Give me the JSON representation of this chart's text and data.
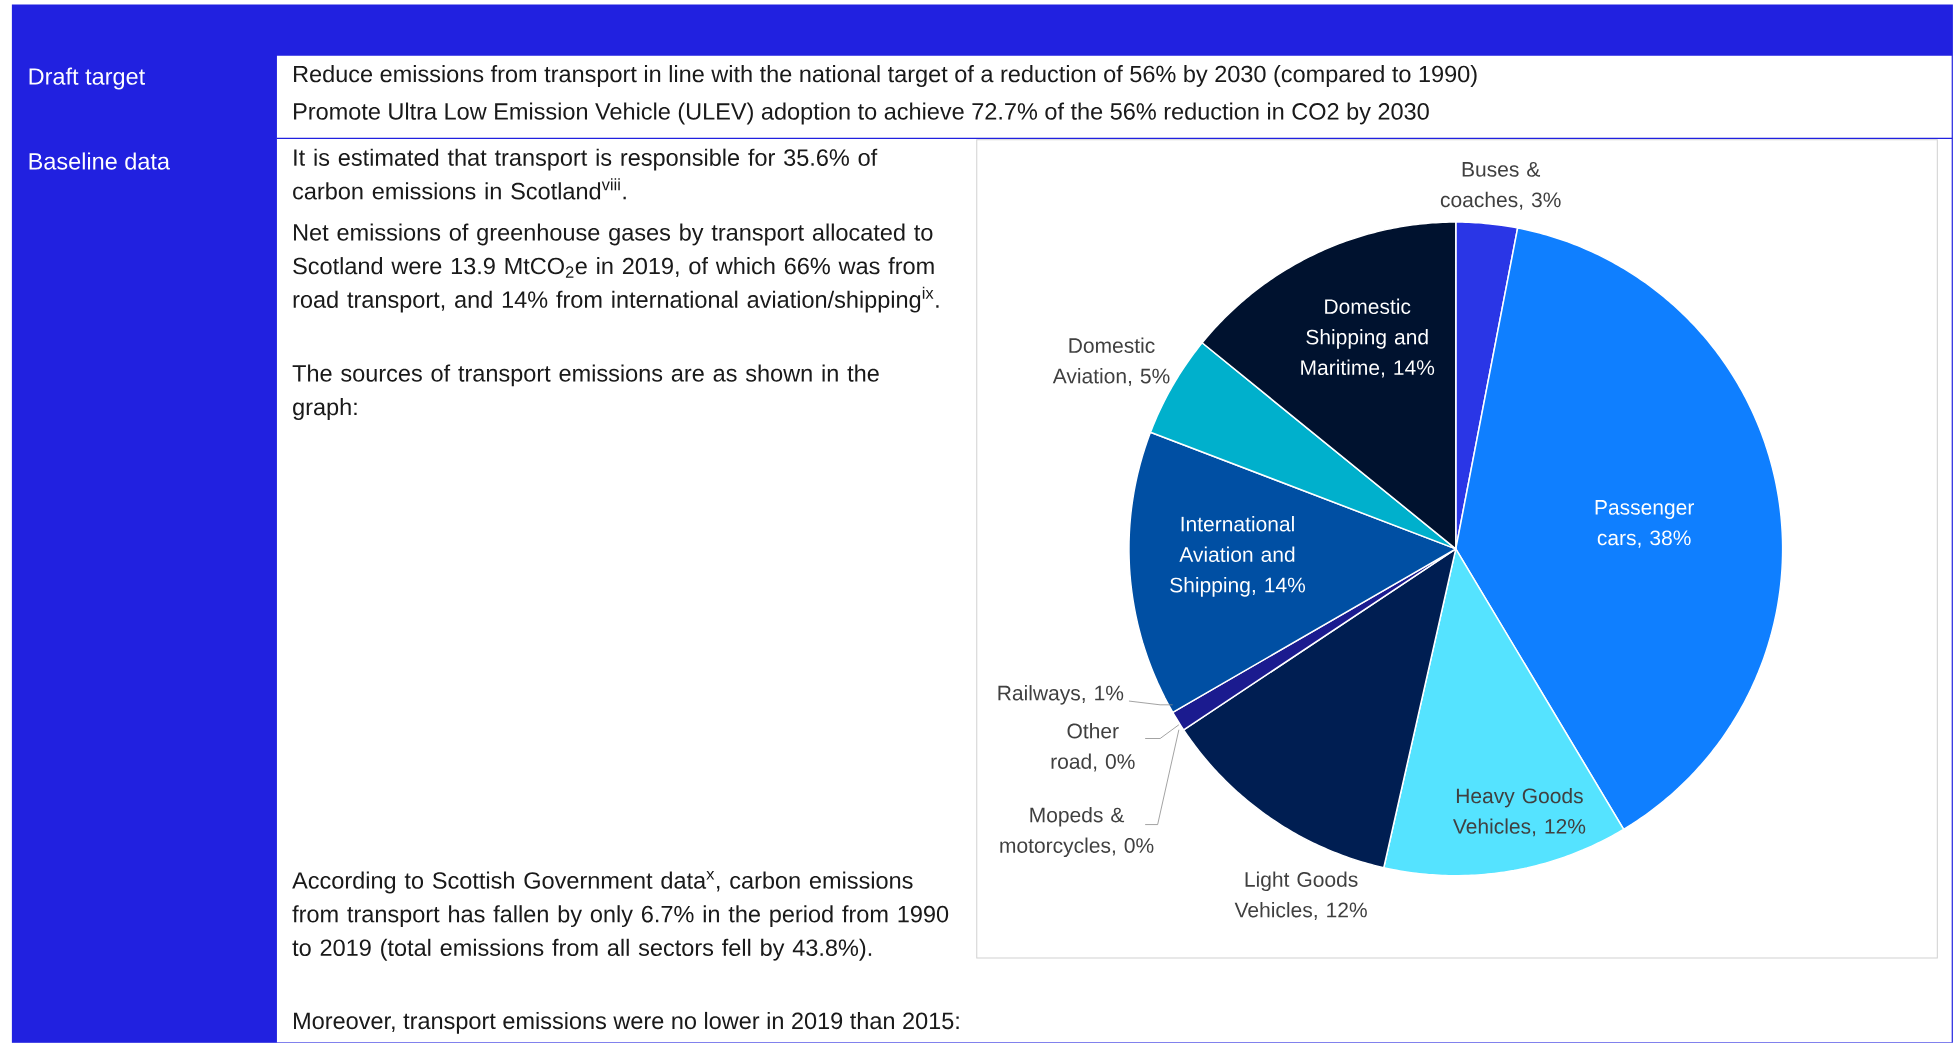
{
  "chart_data": {
    "type": "pie",
    "categories": [
      "Buses & coaches",
      "Passenger cars",
      "Heavy Goods Vehicles",
      "Light Goods Vehicles",
      "Mopeds & motorcycles",
      "Other road",
      "Railways",
      "International Aviation and Shipping",
      "Domestic Aviation",
      "Domestic Shipping and Maritime"
    ],
    "values": [
      3,
      38,
      12,
      12,
      0,
      0,
      1,
      14,
      5,
      14
    ],
    "value_labels": [
      ", 3%",
      ", 38%",
      ", 12%",
      ", 12%",
      ", 0%",
      ", 0%",
      ", 1%",
      ", 14%",
      ", 5%",
      ", 14%"
    ],
    "colors": [
      "#2a36e6",
      "#0f7fff",
      "#55e3ff",
      "#001e52",
      "#c8c8c8",
      "#9a9a9a",
      "#1b1b8f",
      "#004fa3",
      "#00b0cc",
      "#00122f"
    ],
    "annotations": [
      "Draft target",
      "Reduce emissions from transport in line with the national target of a reduction of 56% by 2030 (compared to 1990)",
      "Promote Ultra Low Emission Vehicle (ULEV) adoption to achieve 72.7% of the 56% reduction in CO2 by 2030",
      "Baseline data",
      "It is estimated that transport is responsible for 35.6% of carbon emissions in Scotland$^{viii}$.",
      "Net emissions of greenhouse gases by transport allocated to Scotland were 13.9 MtCO$_{2}$e in 2019, of which 66% was from road transport, and 14% from international aviation/shipping$^{ix}$.",
      "The sources of transport emissions are as shown in the graph:",
      "According to Scottish Government data$^{x}$, carbon emissions from transport has fallen by only 6.7% in the period from 1990 to 2019 (total emissions from all sectors fell by 43.8%).",
      "Moreover, transport emissions were no lower in 2019 than 2015:"
    ]
  }
}
